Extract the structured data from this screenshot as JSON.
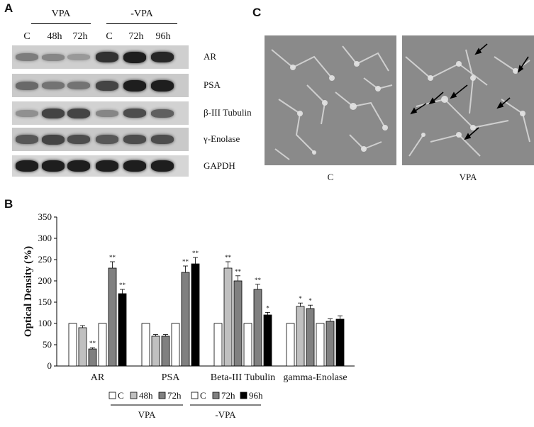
{
  "panel_a": {
    "letter": "A",
    "group_vpa": "VPA",
    "group_minus_vpa": "-VPA",
    "lanes": [
      "C",
      "48h",
      "72h",
      "C",
      "72h",
      "96h"
    ],
    "blots": [
      {
        "label": "AR",
        "intensity": [
          0.45,
          0.4,
          0.3,
          0.85,
          0.95,
          0.9
        ]
      },
      {
        "label": "PSA",
        "intensity": [
          0.55,
          0.5,
          0.5,
          0.75,
          0.95,
          0.95
        ]
      },
      {
        "label": "β-III Tubulin",
        "intensity": [
          0.35,
          0.75,
          0.75,
          0.4,
          0.7,
          0.6
        ]
      },
      {
        "label": "γ-Enolase",
        "intensity": [
          0.65,
          0.75,
          0.7,
          0.65,
          0.7,
          0.7
        ]
      },
      {
        "label": "GAPDH",
        "intensity": [
          0.95,
          0.95,
          0.95,
          0.95,
          0.95,
          0.95
        ]
      }
    ]
  },
  "panel_b": {
    "letter": "B"
  },
  "panel_c": {
    "letter": "C",
    "left_label": "C",
    "right_label": "VPA"
  },
  "chart_data": {
    "type": "bar",
    "title": "",
    "ylabel": "Optical Density (%)",
    "xlabel": "",
    "ylim": [
      0,
      350
    ],
    "yticks": [
      0,
      50,
      100,
      150,
      200,
      250,
      300,
      350
    ],
    "categories": [
      "AR",
      "PSA",
      "Beta-III Tubulin",
      "gamma-Enolase"
    ],
    "legend_group_labels": [
      "VPA",
      "-VPA"
    ],
    "series": [
      {
        "name": "C",
        "group": "VPA",
        "color": "#ffffff",
        "values": [
          100,
          100,
          100,
          100
        ],
        "errors": [
          0,
          0,
          0,
          0
        ],
        "sig": [
          "",
          "",
          "",
          ""
        ]
      },
      {
        "name": "48h",
        "group": "VPA",
        "color": "#c0c0c0",
        "values": [
          90,
          70,
          230,
          140
        ],
        "errors": [
          5,
          4,
          15,
          8
        ],
        "sig": [
          "",
          "",
          "**",
          "*"
        ]
      },
      {
        "name": "72h",
        "group": "VPA",
        "color": "#808080",
        "values": [
          40,
          70,
          200,
          135
        ],
        "errors": [
          3,
          4,
          12,
          8
        ],
        "sig": [
          "**",
          "",
          "**",
          "*"
        ]
      },
      {
        "name": "C",
        "group": "-VPA",
        "color": "#ffffff",
        "values": [
          100,
          100,
          100,
          100
        ],
        "errors": [
          0,
          0,
          0,
          0
        ],
        "sig": [
          "",
          "",
          "",
          ""
        ]
      },
      {
        "name": "72h",
        "group": "-VPA",
        "color": "#808080",
        "values": [
          230,
          220,
          180,
          105
        ],
        "errors": [
          15,
          15,
          12,
          6
        ],
        "sig": [
          "**",
          "**",
          "**",
          ""
        ]
      },
      {
        "name": "96h",
        "group": "-VPA",
        "color": "#000000",
        "values": [
          170,
          240,
          120,
          110
        ],
        "errors": [
          10,
          15,
          6,
          8
        ],
        "sig": [
          "**",
          "**",
          "*",
          ""
        ]
      }
    ]
  }
}
